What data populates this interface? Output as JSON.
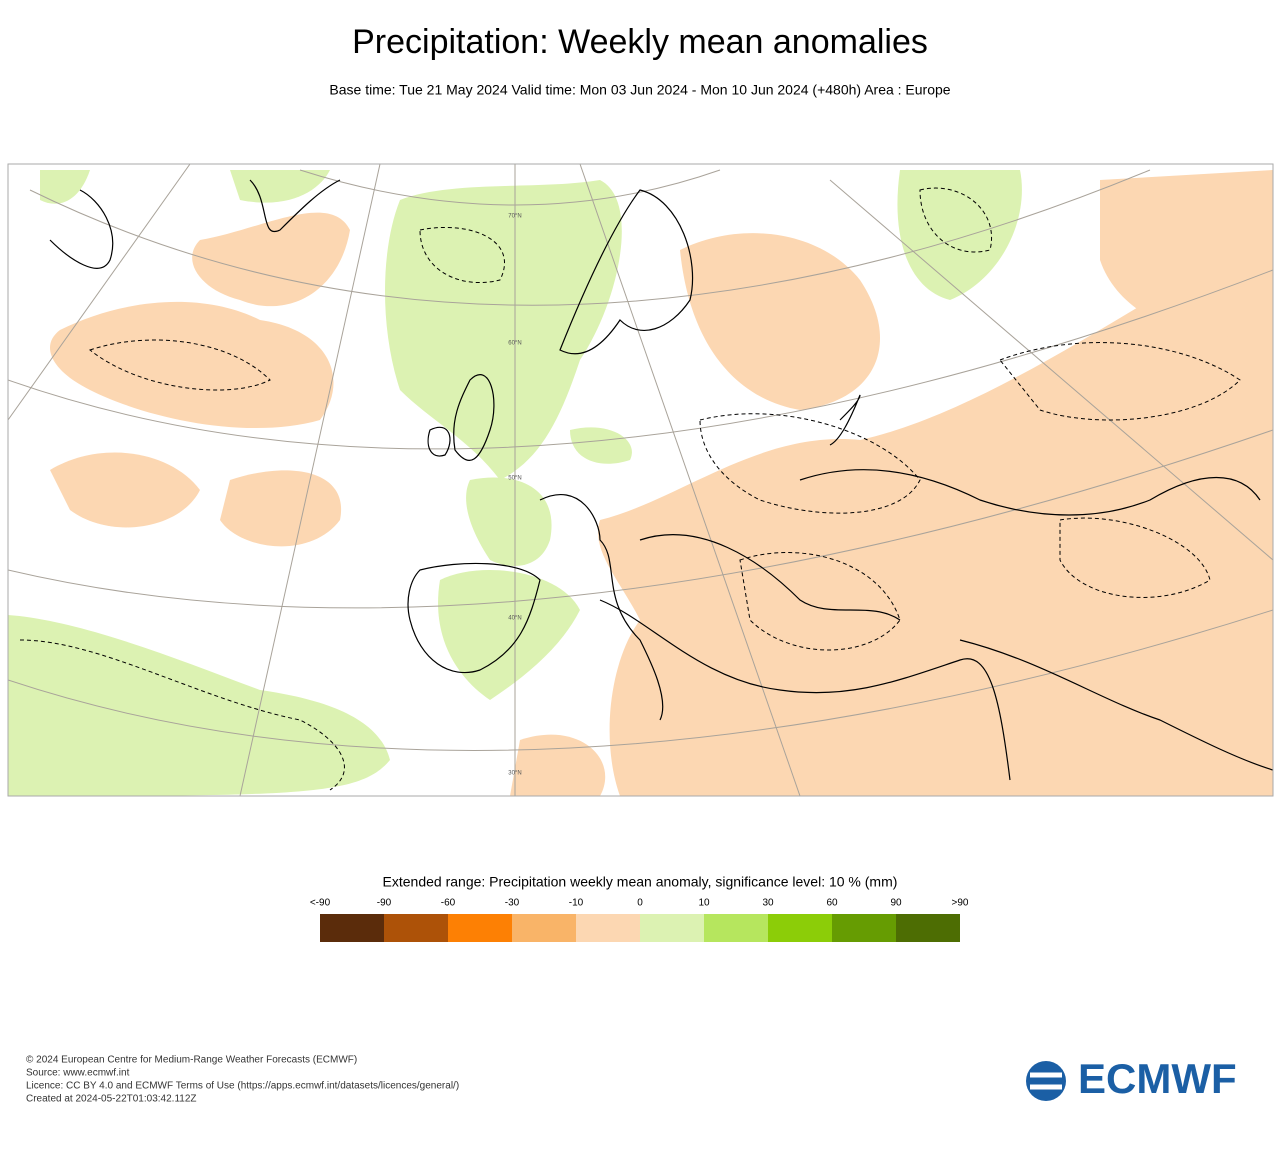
{
  "header": {
    "title": "Precipitation: Weekly mean anomalies",
    "subtitle": "Base time: Tue 21 May 2024 Valid time: Mon 03 Jun 2024 - Mon 10 Jun 2024 (+480h) Area : Europe"
  },
  "map": {
    "lat_labels": [
      "70°N",
      "60°N",
      "50°N",
      "40°N",
      "30°N"
    ]
  },
  "legend": {
    "title": "Extended range: Precipitation weekly mean anomaly, significance level: 10 % (mm)",
    "labels": [
      "<-90",
      "-90",
      "-60",
      "-30",
      "-10",
      "0",
      "10",
      "30",
      "60",
      "90",
      ">90"
    ],
    "colors": [
      "#5b2c0b",
      "#ad5208",
      "#fd8004",
      "#f9b468",
      "#fcd7b2",
      "#dcf2b2",
      "#b6e65e",
      "#8ccd08",
      "#669c02",
      "#4d6d03"
    ]
  },
  "footer": {
    "lines": [
      "© 2024 European Centre for Medium-Range Weather Forecasts (ECMWF)",
      "Source: www.ecmwf.int",
      "Licence: CC BY 4.0 and ECMWF Terms of Use (https://apps.ecmwf.int/datasets/licences/general/)",
      "Created at 2024-05-22T01:03:42.112Z"
    ],
    "logo": "ECMWF"
  }
}
